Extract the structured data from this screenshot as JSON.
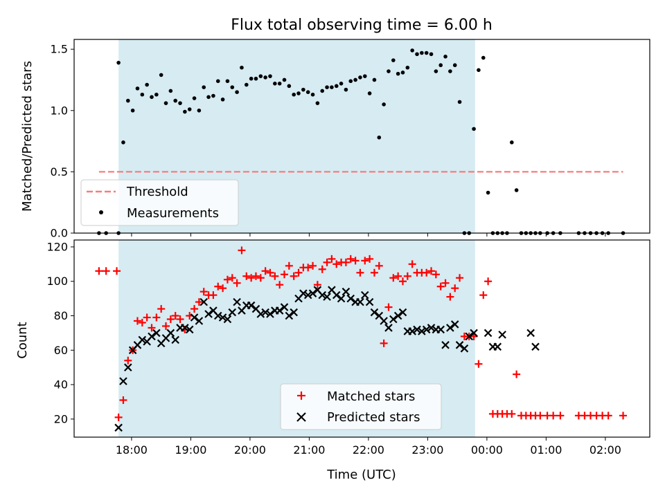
{
  "chart_data": [
    {
      "type": "scatter",
      "title": "Flux total observing time = 6.00 h",
      "xlabel": "",
      "ylabel": "Matched/Predicted stars",
      "ylim": [
        0.0,
        1.58
      ],
      "xlim": [
        -0.97,
        8.75
      ],
      "yticks": [
        0.0,
        0.5,
        1.0,
        1.5
      ],
      "ytick_labels": [
        "0.0",
        "0.5",
        "1.0",
        "1.5"
      ],
      "xticks": [
        0,
        1,
        2,
        3,
        4,
        5,
        6,
        7,
        8
      ],
      "grid": false,
      "legend": "lower-left",
      "shaded_span": {
        "x0": -0.22,
        "x1": 5.8,
        "color": "#add8e6"
      },
      "threshold": {
        "name": "Threshold",
        "y": 0.5,
        "x0": -0.55,
        "x1": 8.3,
        "color": "#f77c7c"
      },
      "series": [
        {
          "name": "Measurements",
          "color": "#000000",
          "x": [
            -0.55,
            -0.43,
            -0.22,
            -0.22,
            -0.14,
            -0.06,
            0.02,
            0.1,
            0.18,
            0.26,
            0.34,
            0.42,
            0.5,
            0.58,
            0.66,
            0.74,
            0.82,
            0.9,
            0.98,
            1.06,
            1.14,
            1.22,
            1.3,
            1.38,
            1.46,
            1.54,
            1.62,
            1.7,
            1.78,
            1.86,
            1.94,
            2.02,
            2.1,
            2.18,
            2.26,
            2.34,
            2.42,
            2.5,
            2.58,
            2.66,
            2.74,
            2.82,
            2.9,
            2.98,
            3.06,
            3.14,
            3.22,
            3.3,
            3.38,
            3.46,
            3.54,
            3.62,
            3.7,
            3.78,
            3.86,
            3.94,
            4.02,
            4.1,
            4.18,
            4.26,
            4.34,
            4.42,
            4.5,
            4.58,
            4.66,
            4.74,
            4.82,
            4.9,
            4.98,
            5.06,
            5.14,
            5.22,
            5.3,
            5.38,
            5.46,
            5.54,
            5.62,
            5.7,
            5.78,
            5.86,
            5.94,
            6.02,
            6.1,
            6.18,
            6.26,
            6.34,
            6.42,
            6.5,
            6.58,
            6.66,
            6.74,
            6.82,
            6.9,
            7.02,
            7.12,
            7.24,
            7.55,
            7.65,
            7.75,
            7.85,
            7.95,
            8.05,
            8.3
          ],
          "y": [
            0.0,
            0.0,
            0.0,
            1.39,
            0.74,
            1.08,
            1.0,
            1.18,
            1.13,
            1.21,
            1.11,
            1.13,
            1.29,
            1.06,
            1.16,
            1.08,
            1.06,
            0.99,
            1.01,
            1.1,
            1.0,
            1.19,
            1.11,
            1.12,
            1.24,
            1.09,
            1.24,
            1.19,
            1.15,
            1.35,
            1.21,
            1.26,
            1.26,
            1.28,
            1.27,
            1.28,
            1.22,
            1.22,
            1.25,
            1.2,
            1.13,
            1.14,
            1.17,
            1.15,
            1.13,
            1.06,
            1.16,
            1.19,
            1.19,
            1.2,
            1.22,
            1.17,
            1.24,
            1.25,
            1.27,
            1.28,
            1.14,
            1.25,
            0.78,
            1.05,
            1.32,
            1.41,
            1.3,
            1.31,
            1.35,
            1.49,
            1.46,
            1.47,
            1.47,
            1.46,
            1.32,
            1.37,
            1.44,
            1.32,
            1.37,
            1.07,
            0.0,
            0.0,
            0.85,
            1.33,
            1.43,
            0.33,
            0.0,
            0.0,
            0.0,
            0.0,
            0.74,
            0.35,
            0.0,
            0.0,
            0.0,
            0.0,
            0.0,
            0.0,
            0.0,
            0.0,
            0.0,
            0.0,
            0.0,
            0.0,
            0.0,
            0.0,
            0.0
          ]
        }
      ]
    },
    {
      "type": "scatter",
      "title": "",
      "xlabel": "Time (UTC)",
      "ylabel": "Count",
      "ylim": [
        9.5,
        124
      ],
      "xlim": [
        -0.97,
        8.75
      ],
      "yticks": [
        20,
        40,
        60,
        80,
        100,
        120
      ],
      "ytick_labels": [
        "20",
        "40",
        "60",
        "80",
        "100",
        "120"
      ],
      "xticks": [
        0,
        1,
        2,
        3,
        4,
        5,
        6,
        7,
        8
      ],
      "xtick_labels": [
        "18:00",
        "19:00",
        "20:00",
        "21:00",
        "22:00",
        "23:00",
        "00:00",
        "01:00",
        "02:00"
      ],
      "grid": false,
      "legend": "lower-center",
      "shaded_span": {
        "x0": -0.22,
        "x1": 5.8,
        "color": "#add8e6"
      },
      "series": [
        {
          "name": "Matched stars",
          "marker": "plus",
          "color": "#ff0000",
          "x": [
            -0.55,
            -0.43,
            -0.25,
            -0.22,
            -0.14,
            -0.06,
            0.02,
            0.1,
            0.18,
            0.26,
            0.34,
            0.42,
            0.5,
            0.58,
            0.66,
            0.74,
            0.82,
            0.9,
            0.98,
            1.06,
            1.14,
            1.22,
            1.3,
            1.38,
            1.46,
            1.54,
            1.62,
            1.7,
            1.78,
            1.86,
            1.94,
            2.02,
            2.1,
            2.18,
            2.26,
            2.34,
            2.42,
            2.5,
            2.58,
            2.66,
            2.74,
            2.82,
            2.9,
            2.98,
            3.06,
            3.14,
            3.22,
            3.3,
            3.38,
            3.46,
            3.54,
            3.62,
            3.7,
            3.78,
            3.86,
            3.94,
            4.02,
            4.1,
            4.18,
            4.26,
            4.34,
            4.42,
            4.5,
            4.58,
            4.66,
            4.74,
            4.82,
            4.9,
            4.98,
            5.06,
            5.14,
            5.22,
            5.3,
            5.38,
            5.46,
            5.54,
            5.62,
            5.7,
            5.78,
            5.86,
            5.94,
            6.02,
            6.1,
            6.18,
            6.26,
            6.34,
            6.42,
            6.5,
            6.58,
            6.66,
            6.74,
            6.82,
            6.9,
            7.02,
            7.12,
            7.24,
            7.55,
            7.65,
            7.75,
            7.85,
            7.95,
            8.05,
            8.3
          ],
          "y": [
            106,
            106,
            106,
            21,
            31,
            54,
            60,
            77,
            76,
            79,
            73,
            79,
            84,
            74,
            78,
            80,
            78,
            72,
            80,
            84,
            88,
            94,
            92,
            92,
            97,
            96,
            101,
            102,
            99,
            118,
            103,
            102,
            103,
            102,
            106,
            105,
            103,
            98,
            104,
            109,
            103,
            105,
            108,
            108,
            109,
            98,
            107,
            111,
            113,
            110,
            111,
            111,
            113,
            112,
            105,
            112,
            113,
            105,
            109,
            64,
            85,
            102,
            103,
            100,
            103,
            110,
            105,
            105,
            105,
            106,
            104,
            97,
            99,
            91,
            96,
            102,
            68,
            68,
            68,
            52,
            92,
            100,
            23,
            23,
            23,
            23,
            23,
            46,
            22,
            22,
            22,
            22,
            22,
            22,
            22,
            22,
            22,
            22,
            22,
            22,
            22,
            22,
            22
          ]
        },
        {
          "name": "Predicted stars",
          "marker": "x",
          "color": "#000000",
          "x": [
            -0.22,
            -0.14,
            -0.06,
            0.02,
            0.1,
            0.18,
            0.26,
            0.34,
            0.42,
            0.5,
            0.58,
            0.66,
            0.74,
            0.82,
            0.9,
            0.98,
            1.06,
            1.14,
            1.22,
            1.3,
            1.38,
            1.46,
            1.54,
            1.62,
            1.7,
            1.78,
            1.86,
            1.94,
            2.02,
            2.1,
            2.18,
            2.26,
            2.34,
            2.42,
            2.5,
            2.58,
            2.66,
            2.74,
            2.82,
            2.9,
            2.98,
            3.06,
            3.14,
            3.22,
            3.3,
            3.38,
            3.46,
            3.54,
            3.62,
            3.7,
            3.78,
            3.86,
            3.94,
            4.02,
            4.1,
            4.18,
            4.26,
            4.34,
            4.42,
            4.5,
            4.58,
            4.66,
            4.74,
            4.82,
            4.9,
            4.98,
            5.06,
            5.14,
            5.22,
            5.3,
            5.38,
            5.46,
            5.54,
            5.62,
            5.7,
            5.78,
            6.02,
            6.1,
            6.18,
            6.26,
            6.74,
            6.82
          ],
          "y": [
            15,
            42,
            50,
            60,
            63,
            66,
            65,
            68,
            70,
            64,
            67,
            70,
            66,
            73,
            73,
            72,
            79,
            77,
            88,
            81,
            83,
            80,
            79,
            78,
            82,
            88,
            83,
            86,
            86,
            84,
            81,
            82,
            81,
            83,
            83,
            85,
            80,
            82,
            90,
            93,
            92,
            93,
            95,
            92,
            91,
            95,
            92,
            90,
            94,
            90,
            88,
            88,
            92,
            88,
            82,
            80,
            77,
            73,
            78,
            80,
            82,
            71,
            71,
            72,
            71,
            72,
            73,
            72,
            72,
            63,
            73,
            75,
            63,
            61,
            68,
            70,
            70,
            62,
            62,
            69,
            70,
            62
          ]
        }
      ]
    }
  ]
}
